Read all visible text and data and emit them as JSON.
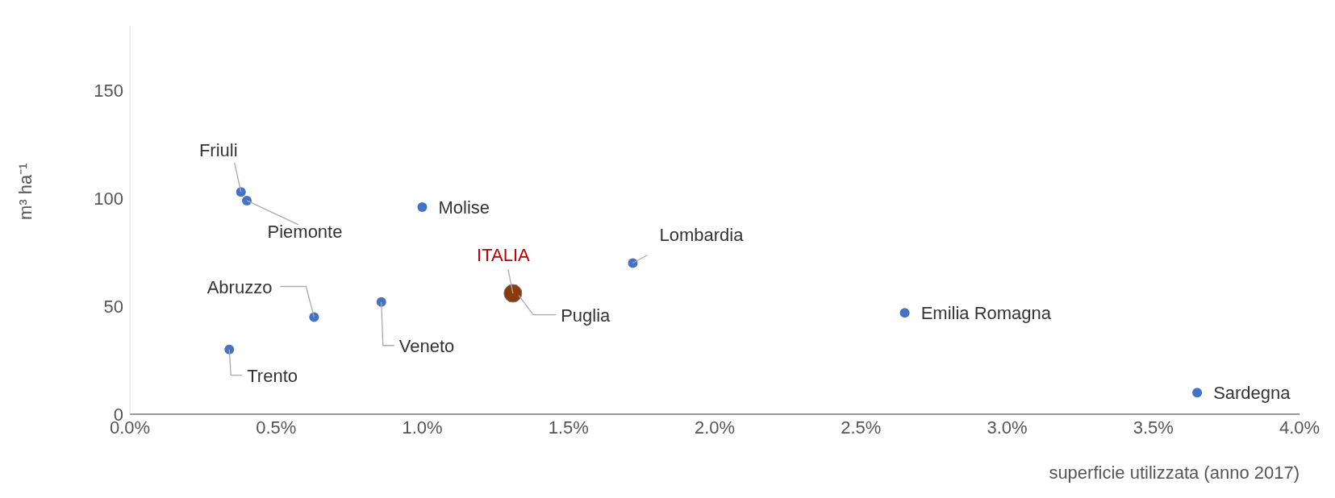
{
  "chart_data": {
    "type": "scatter",
    "xlabel": "superficie utilizzata (anno 2017)",
    "ylabel": "m³ ha⁻¹",
    "xlim": [
      0,
      4
    ],
    "xticks": [
      {
        "value": 0,
        "label": "0.0%"
      },
      {
        "value": 0.5,
        "label": "0.5%"
      },
      {
        "value": 1,
        "label": "1.0%"
      },
      {
        "value": 1.5,
        "label": "1.5%"
      },
      {
        "value": 2,
        "label": "2.0%"
      },
      {
        "value": 2.5,
        "label": "2.5%"
      },
      {
        "value": 3,
        "label": "3.0%"
      },
      {
        "value": 3.5,
        "label": "3.5%"
      },
      {
        "value": 4,
        "label": "4.0%"
      }
    ],
    "ylim": [
      0,
      180
    ],
    "yticks": [
      0,
      50,
      100,
      150
    ],
    "grid": false,
    "legend": false,
    "marker": "circle",
    "series": [
      {
        "color": "#4472c4",
        "x": [
          0.38,
          0.4,
          1.0,
          1.72,
          1.33,
          0.63,
          0.86,
          0.34,
          2.65,
          3.65
        ],
        "values": [
          103,
          99,
          96,
          70,
          null,
          45,
          52,
          30,
          47,
          10
        ]
      },
      {
        "name": "ITALIA",
        "color": "#8b3a0f",
        "x": [
          1.31
        ],
        "values": [
          56
        ]
      }
    ],
    "annotations": [
      {
        "text": "Friuli",
        "x": 0.38,
        "y": 103
      },
      {
        "text": "Piemonte",
        "x": 0.4,
        "y": 99
      },
      {
        "text": "Molise",
        "x": 1.0,
        "y": 96
      },
      {
        "text": "Lombardia",
        "x": 1.72,
        "y": 70
      },
      {
        "text": "Puglia",
        "x": 1.33,
        "y": 55
      },
      {
        "text": "Abruzzo",
        "x": 0.63,
        "y": 45
      },
      {
        "text": "Veneto",
        "x": 0.86,
        "y": 52
      },
      {
        "text": "Trento",
        "x": 0.34,
        "y": 30
      },
      {
        "text": "Emilia Romagna",
        "x": 2.65,
        "y": 47
      },
      {
        "text": "Sardegna",
        "x": 3.65,
        "y": 10
      }
    ]
  }
}
